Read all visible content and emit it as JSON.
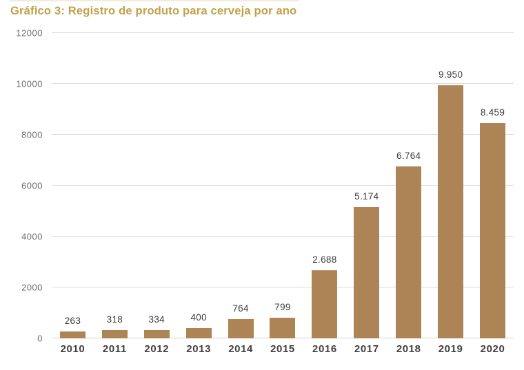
{
  "title": "Gráfico 3: Registro de produto para cerveja por ano",
  "colors": {
    "title": "#C2A04A",
    "bar": "#AD8455",
    "grid": "#DCDCDC",
    "baseline": "#D2D2D2",
    "y_tick_label": "#6B6B6B",
    "x_tick_label": "#404040",
    "value_label": "#3C3C3C",
    "background": "#FFFFFF"
  },
  "chart_data": {
    "type": "bar",
    "title": "Gráfico 3: Registro de produto para cerveja por ano",
    "categories": [
      "2010",
      "2011",
      "2012",
      "2013",
      "2014",
      "2015",
      "2016",
      "2017",
      "2018",
      "2019",
      "2020"
    ],
    "values": [
      263,
      318,
      334,
      400,
      764,
      799,
      2688,
      5174,
      6764,
      9950,
      8459
    ],
    "value_labels": [
      "263",
      "318",
      "334",
      "400",
      "764",
      "799",
      "2.688",
      "5.174",
      "6.764",
      "9.950",
      "8.459"
    ],
    "xlabel": "",
    "ylabel": "",
    "ylim": [
      0,
      12000
    ],
    "ytick_interval": 2000,
    "yticks": [
      "0",
      "2000",
      "4000",
      "6000",
      "8000",
      "10000",
      "12000"
    ],
    "grid": true,
    "legend_position": "none"
  }
}
